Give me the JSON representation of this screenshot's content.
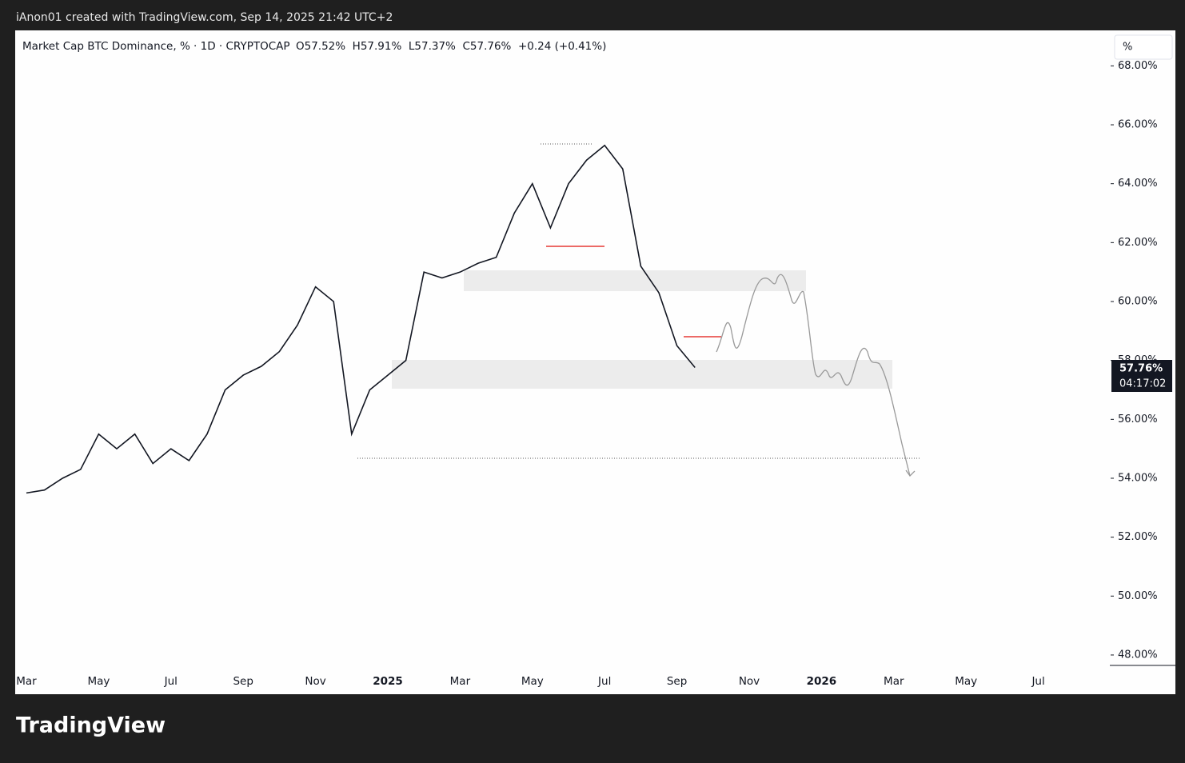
{
  "header": {
    "attribution": "iAnon01 created with TradingView.com, Sep 14, 2025 21:42 UTC+2"
  },
  "chart_data": {
    "type": "line",
    "title": "Market Cap BTC Dominance, % · 1D · CRYPTOCAP",
    "ohlc": "O57.52%  H57.91%  L57.37%  C57.76%  +0.24 (+0.41%)",
    "scale_button": "%",
    "last_price_label": "57.76%",
    "countdown": "04:17:02",
    "categories": [
      "Mar",
      null,
      null,
      null,
      "May",
      null,
      null,
      null,
      "Jul",
      null,
      null,
      null,
      "Sep",
      null,
      null,
      null,
      "Nov",
      null,
      null,
      null,
      "2025",
      null,
      null,
      null,
      "Mar",
      null,
      null,
      null,
      "May",
      null,
      null,
      null,
      "Jul",
      null,
      null,
      null,
      "Sep",
      null,
      null,
      null,
      "Nov",
      null,
      null,
      null,
      "2026",
      null,
      null,
      null,
      "Mar",
      null,
      null,
      null,
      "May",
      null,
      null,
      null,
      "Jul",
      null,
      null,
      null
    ],
    "series": [
      {
        "name": "BTC Dominance",
        "color": "#131722",
        "values": [
          53.5,
          53.6,
          54.0,
          54.3,
          55.5,
          55.0,
          55.5,
          54.5,
          55.0,
          54.6,
          55.5,
          57.0,
          57.5,
          57.8,
          58.3,
          59.2,
          60.5,
          60.0,
          55.5,
          57.0,
          57.5,
          58.0,
          61.0,
          60.8,
          61.0,
          61.3,
          61.5,
          63.0,
          64.0,
          62.5,
          64.0,
          64.8,
          65.3,
          64.5,
          61.2,
          60.3,
          58.5,
          57.76,
          null,
          null,
          null,
          null,
          null,
          null,
          null,
          null,
          null,
          null,
          null,
          null,
          null,
          null,
          null,
          null,
          null,
          null,
          null,
          null,
          null,
          null
        ]
      }
    ],
    "ylim": [
      47.7,
      68.2
    ],
    "yticks": [
      {
        "value": 48,
        "label": "48.00%"
      },
      {
        "value": 50,
        "label": "50.00%"
      },
      {
        "value": 52,
        "label": "52.00%"
      },
      {
        "value": 54,
        "label": "54.00%"
      },
      {
        "value": 56,
        "label": "56.00%"
      },
      {
        "value": 58,
        "label": "58.00%"
      },
      {
        "value": 60,
        "label": "60.00%"
      },
      {
        "value": 62,
        "label": "62.00%"
      },
      {
        "value": 64,
        "label": "64.00%"
      },
      {
        "value": 66,
        "label": "66.00%"
      },
      {
        "value": 68,
        "label": "68.00%"
      }
    ],
    "grid": false
  },
  "footer": {
    "logo": "TradingView"
  }
}
